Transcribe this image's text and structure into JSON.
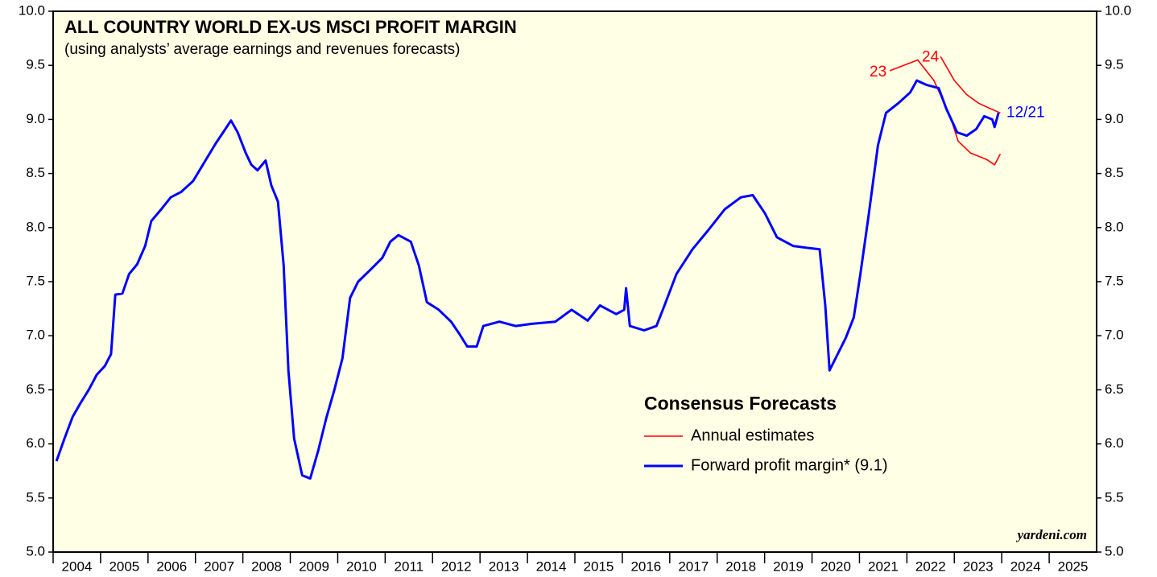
{
  "chart_data": {
    "type": "line",
    "title": "ALL COUNTRY WORLD EX-US MSCI PROFIT MARGIN",
    "subtitle": "(using analysts’ average earnings and revenues forecasts)",
    "legend_title": "Consensus Forecasts",
    "source": "yardeni.com",
    "xlim": [
      2004,
      2026
    ],
    "xticks": [
      2004,
      2005,
      2006,
      2007,
      2008,
      2009,
      2010,
      2011,
      2012,
      2013,
      2014,
      2015,
      2016,
      2017,
      2018,
      2019,
      2020,
      2021,
      2022,
      2023,
      2024,
      2025
    ],
    "ylim": [
      5,
      10
    ],
    "yticks": [
      {
        "value": 5,
        "label": "5.0"
      },
      {
        "value": 5.5,
        "label": "5.5"
      },
      {
        "value": 6,
        "label": "6.0"
      },
      {
        "value": 6.5,
        "label": "6.5"
      },
      {
        "value": 7,
        "label": "7.0"
      },
      {
        "value": 7.5,
        "label": "7.5"
      },
      {
        "value": 8,
        "label": "8.0"
      },
      {
        "value": 8.5,
        "label": "8.5"
      },
      {
        "value": 9,
        "label": "9.0"
      },
      {
        "value": 9.5,
        "label": "9.5"
      },
      {
        "value": 10,
        "label": "10.0"
      }
    ],
    "series": [
      {
        "name": "Annual estimates",
        "color": "#ff0000",
        "label": "23",
        "x": [
          2021.64,
          2022.23,
          2022.57,
          2022.91,
          2023.08,
          2023.34,
          2023.68,
          2023.85,
          2023.97
        ],
        "values": [
          9.45,
          9.55,
          9.36,
          9.03,
          8.8,
          8.69,
          8.63,
          8.58,
          8.68
        ]
      },
      {
        "name": "Annual estimates",
        "color": "#ff0000",
        "label": "24",
        "legend": false,
        "x": [
          2022.71,
          2023.0,
          2023.26,
          2023.51,
          2023.76,
          2023.97
        ],
        "values": [
          9.58,
          9.36,
          9.23,
          9.15,
          9.1,
          9.06
        ]
      },
      {
        "name": "Forward profit margin* (9.1)",
        "color": "#0000ff",
        "label": "12/21",
        "x": [
          2004.07,
          2004.24,
          2004.41,
          2004.58,
          2004.75,
          2004.92,
          2005.09,
          2005.22,
          2005.31,
          2005.46,
          2005.6,
          2005.77,
          2005.94,
          2006.07,
          2006.28,
          2006.48,
          2006.7,
          2006.95,
          2007.21,
          2007.43,
          2007.63,
          2007.75,
          2007.89,
          2008.06,
          2008.18,
          2008.31,
          2008.48,
          2008.6,
          2008.74,
          2008.86,
          2008.96,
          2009.08,
          2009.25,
          2009.42,
          2009.59,
          2009.76,
          2009.93,
          2010.1,
          2010.26,
          2010.43,
          2010.69,
          2010.94,
          2011.11,
          2011.28,
          2011.54,
          2011.71,
          2011.88,
          2012.13,
          2012.39,
          2012.56,
          2012.73,
          2012.93,
          2013.07,
          2013.41,
          2013.75,
          2014.09,
          2014.59,
          2014.93,
          2015.27,
          2015.53,
          2015.87,
          2016.04,
          2016.08,
          2016.16,
          2016.46,
          2016.72,
          2016.89,
          2017.14,
          2017.48,
          2017.82,
          2018.16,
          2018.5,
          2018.75,
          2019.01,
          2019.26,
          2019.6,
          2019.94,
          2020.16,
          2020.28,
          2020.37,
          2020.54,
          2020.71,
          2020.88,
          2021.02,
          2021.19,
          2021.39,
          2021.56,
          2021.82,
          2022.07,
          2022.21,
          2022.41,
          2022.67,
          2022.83,
          2023.06,
          2023.26,
          2023.46,
          2023.63,
          2023.8,
          2023.85,
          2023.93
        ],
        "values": [
          5.84,
          6.05,
          6.25,
          6.38,
          6.5,
          6.64,
          6.72,
          6.83,
          7.38,
          7.39,
          7.57,
          7.66,
          7.83,
          8.06,
          8.17,
          8.28,
          8.33,
          8.43,
          8.62,
          8.78,
          8.91,
          8.99,
          8.88,
          8.69,
          8.58,
          8.53,
          8.62,
          8.39,
          8.24,
          7.65,
          6.68,
          6.05,
          5.71,
          5.68,
          5.94,
          6.24,
          6.5,
          6.79,
          7.35,
          7.5,
          7.61,
          7.72,
          7.87,
          7.93,
          7.87,
          7.65,
          7.31,
          7.24,
          7.13,
          7.02,
          6.9,
          6.9,
          7.09,
          7.13,
          7.09,
          7.11,
          7.13,
          7.24,
          7.14,
          7.28,
          7.2,
          7.24,
          7.44,
          7.09,
          7.05,
          7.09,
          7.28,
          7.57,
          7.8,
          7.98,
          8.17,
          8.28,
          8.3,
          8.13,
          7.91,
          7.83,
          7.81,
          7.8,
          7.28,
          6.68,
          6.83,
          6.98,
          7.17,
          7.57,
          8.1,
          8.76,
          9.06,
          9.15,
          9.25,
          9.36,
          9.32,
          9.29,
          9.1,
          8.88,
          8.85,
          8.91,
          9.03,
          9.0,
          8.93,
          9.06
        ]
      }
    ]
  }
}
